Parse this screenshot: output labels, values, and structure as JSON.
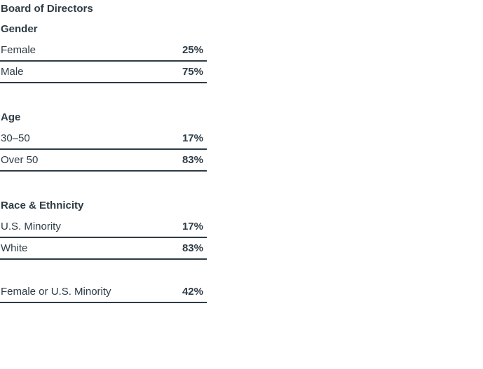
{
  "colors": {
    "ink": "#2d3b45",
    "background": "#ffffff"
  },
  "chart_data": {
    "type": "table",
    "title": "Board of Directors",
    "sections": [
      {
        "heading": "Gender",
        "rows": [
          {
            "label": "Female",
            "value": "25%"
          },
          {
            "label": "Male",
            "value": "75%"
          }
        ]
      },
      {
        "heading": "Age",
        "rows": [
          {
            "label": "30–50",
            "value": "17%"
          },
          {
            "label": "Over 50",
            "value": "83%"
          }
        ]
      },
      {
        "heading": "Race & Ethnicity",
        "rows": [
          {
            "label": "U.S. Minority",
            "value": "17%"
          },
          {
            "label": "White",
            "value": "83%"
          }
        ]
      }
    ],
    "summary_row": {
      "label": "Female or U.S. Minority",
      "value": "42%"
    }
  }
}
